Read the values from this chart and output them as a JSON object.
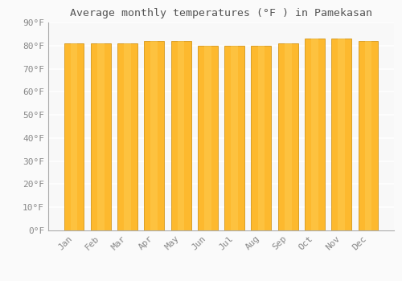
{
  "title": "Average monthly temperatures (°F ) in Pamekasan",
  "months": [
    "Jan",
    "Feb",
    "Mar",
    "Apr",
    "May",
    "Jun",
    "Jul",
    "Aug",
    "Sep",
    "Oct",
    "Nov",
    "Dec"
  ],
  "values": [
    81,
    81,
    81,
    82,
    82,
    80,
    80,
    80,
    81,
    83,
    83,
    82
  ],
  "ylim": [
    0,
    90
  ],
  "yticks": [
    0,
    10,
    20,
    30,
    40,
    50,
    60,
    70,
    80,
    90
  ],
  "ytick_labels": [
    "0°F",
    "10°F",
    "20°F",
    "30°F",
    "40°F",
    "50°F",
    "60°F",
    "70°F",
    "80°F",
    "90°F"
  ],
  "bar_color_top": "#FDB92E",
  "bar_color_bottom": "#F7A500",
  "bar_edge_color": "#CC8800",
  "background_color": "#FAFAFA",
  "plot_bg_color": "#F8F8F8",
  "grid_color": "#FFFFFF",
  "title_fontsize": 9.5,
  "tick_fontsize": 8,
  "font_color": "#888888",
  "title_color": "#555555"
}
